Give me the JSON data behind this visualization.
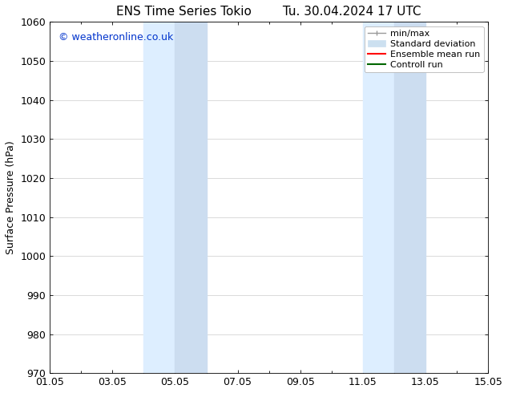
{
  "title_left": "ENS Time Series Tokio",
  "title_right": "Tu. 30.04.2024 17 UTC",
  "ylabel": "Surface Pressure (hPa)",
  "ylim": [
    970,
    1060
  ],
  "yticks": [
    970,
    980,
    990,
    1000,
    1010,
    1020,
    1030,
    1040,
    1050,
    1060
  ],
  "xlim_start": 0.0,
  "xlim_end": 14.0,
  "xtick_positions": [
    0,
    2,
    4,
    6,
    8,
    10,
    12,
    14
  ],
  "xtick_labels": [
    "01.05",
    "03.05",
    "05.05",
    "07.05",
    "09.05",
    "11.05",
    "13.05",
    "15.05"
  ],
  "shaded_bands": [
    {
      "xmin": 3.0,
      "xmax": 4.0,
      "color": "#ddeeff"
    },
    {
      "xmin": 4.0,
      "xmax": 5.0,
      "color": "#ccddf0"
    },
    {
      "xmin": 10.0,
      "xmax": 11.0,
      "color": "#ddeeff"
    },
    {
      "xmin": 11.0,
      "xmax": 12.0,
      "color": "#ccddf0"
    }
  ],
  "watermark_text": "© weatheronline.co.uk",
  "watermark_color": "#0033cc",
  "background_color": "#ffffff",
  "legend_minmax_color": "#999999",
  "legend_std_color": "#cce0f0",
  "legend_ens_color": "#ff0000",
  "legend_ctrl_color": "#006600",
  "grid_color": "#cccccc",
  "spine_color": "#000000",
  "title_fontsize": 11,
  "tick_fontsize": 9,
  "label_fontsize": 9,
  "watermark_fontsize": 9,
  "legend_fontsize": 8
}
